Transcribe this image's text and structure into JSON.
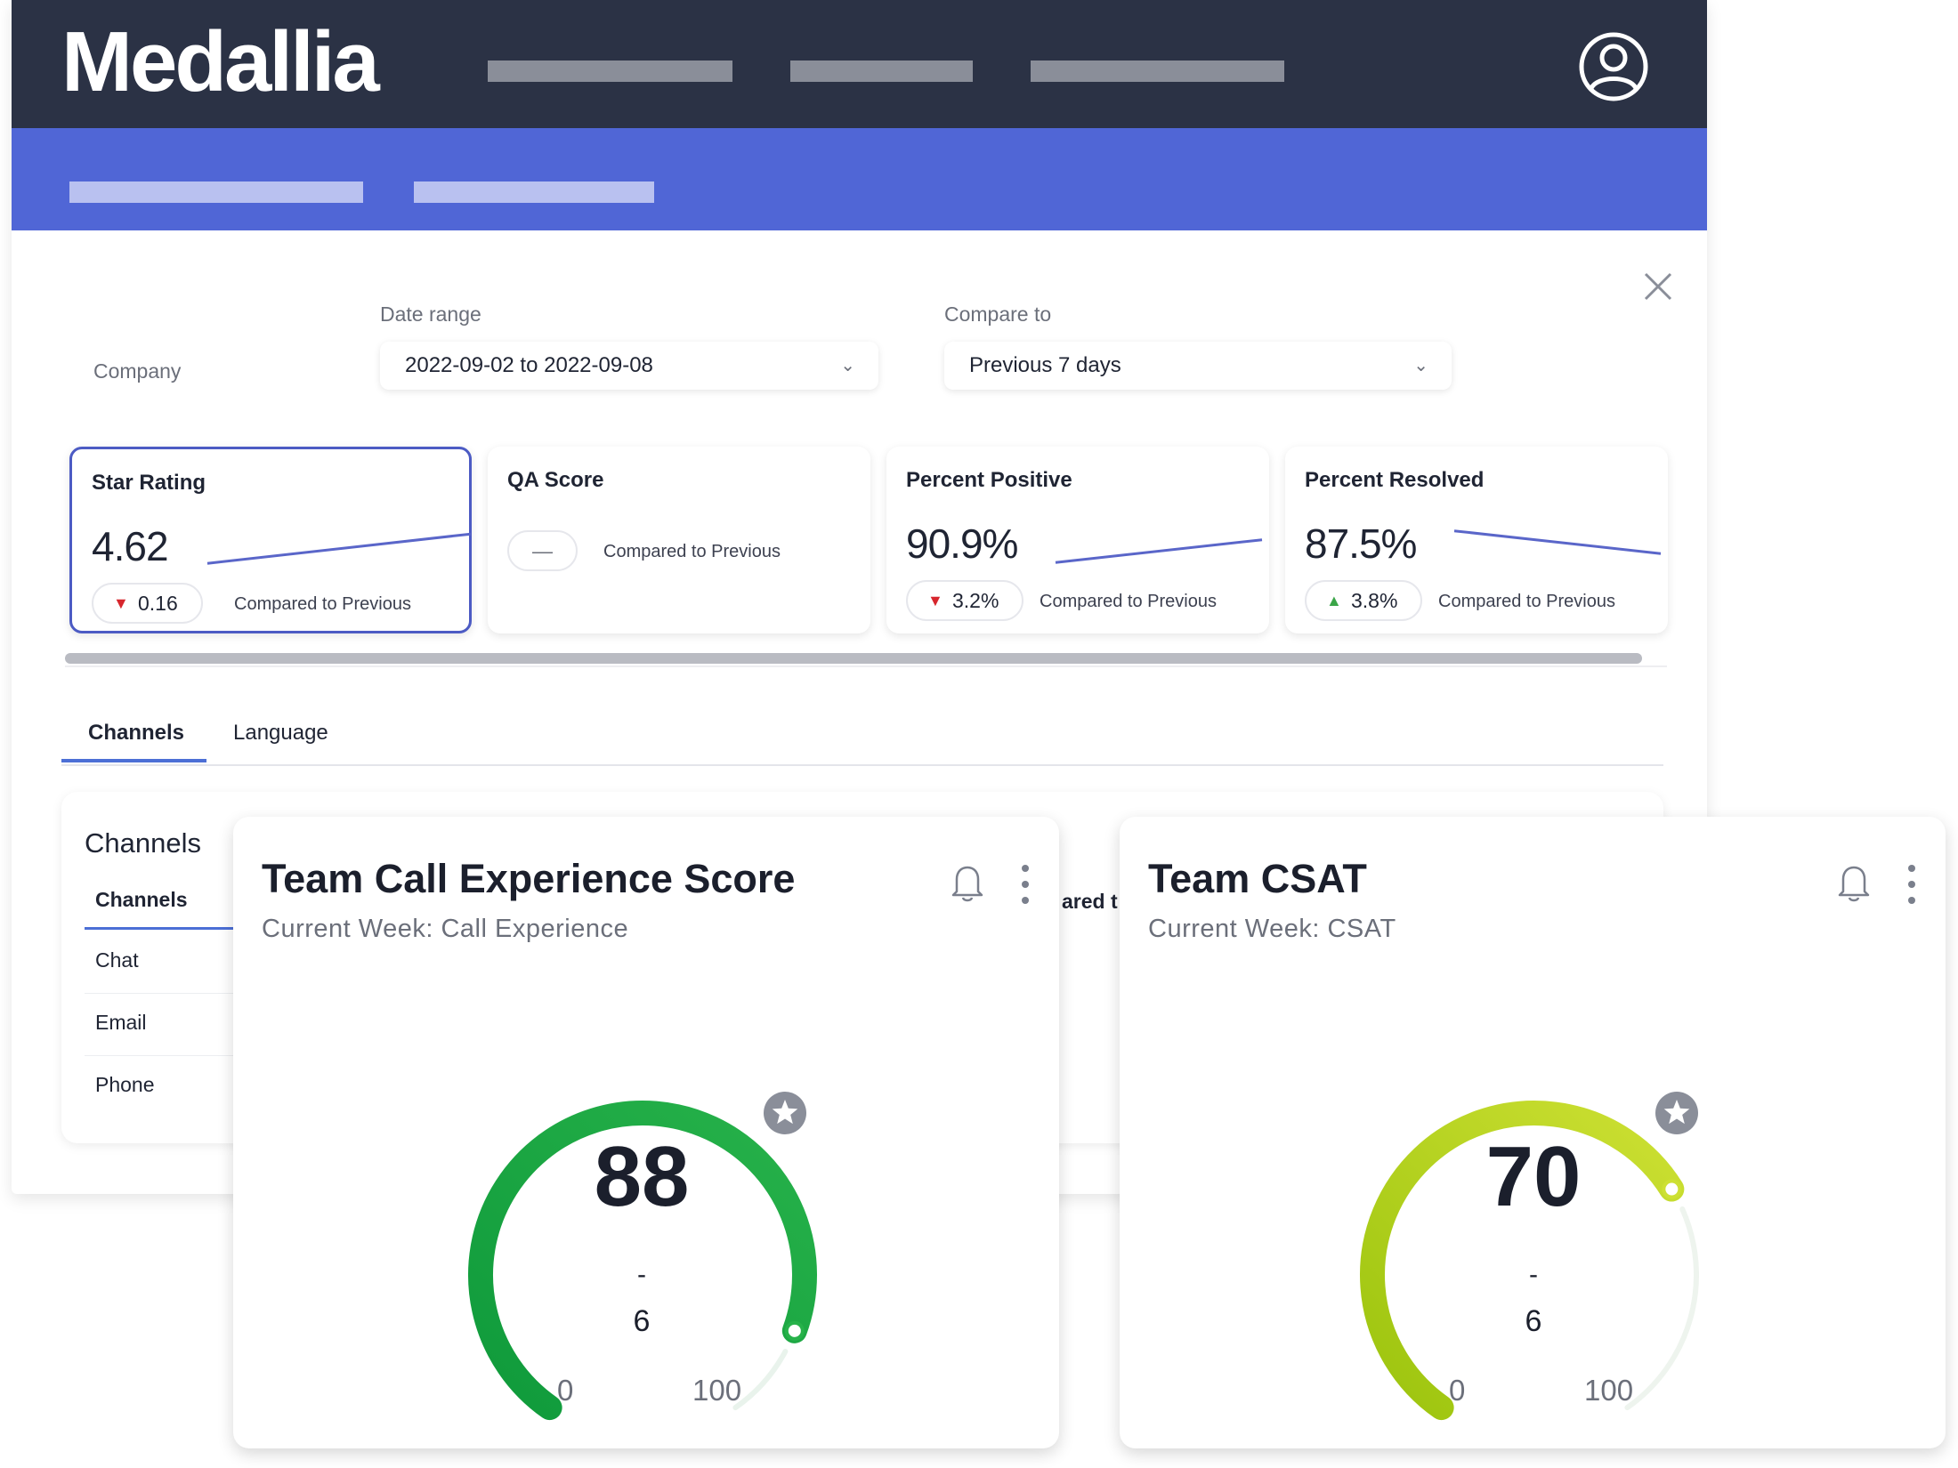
{
  "brand": {
    "logo": "Medallia"
  },
  "filters": {
    "company_label": "Company",
    "date_range_label": "Date range",
    "date_range_value": "2022-09-02 to 2022-09-08",
    "compare_label": "Compare to",
    "compare_value": "Previous 7 days"
  },
  "kpis": [
    {
      "title": "Star Rating",
      "value": "4.62",
      "change": "0.16",
      "direction": "down",
      "compare": "Compared to Previous",
      "trend": [
        0.2,
        0.95
      ]
    },
    {
      "title": "QA Score",
      "value": "",
      "change": "—",
      "direction": "none",
      "compare": "Compared to Previous",
      "trend": []
    },
    {
      "title": "Percent Positive",
      "value": "90.9%",
      "change": "3.2%",
      "direction": "down",
      "compare": "Compared to Previous",
      "trend": [
        0.2,
        0.95
      ]
    },
    {
      "title": "Percent Resolved",
      "value": "87.5%",
      "change": "3.8%",
      "direction": "up",
      "compare": "Compared to Previous",
      "trend": [
        0.95,
        0.2
      ]
    }
  ],
  "tabs": [
    "Channels",
    "Language"
  ],
  "channels_panel": {
    "title": "Channels",
    "column_header": "Channels",
    "rows": [
      "Chat",
      "Email",
      "Phone"
    ],
    "clipped_text": "ared t"
  },
  "gauges": [
    {
      "title": "Team Call Experience Score",
      "subtitle": "Current Week: Call Experience",
      "value": "88",
      "score": 88,
      "dash": "-",
      "change": "6",
      "min": "0",
      "max": "100",
      "color_start": "#0f9a3b",
      "color_end": "#27b24a",
      "track": "#e9f3ec"
    },
    {
      "title": "Team CSAT",
      "subtitle": "Current Week: CSAT",
      "value": "70",
      "score": 70,
      "dash": "-",
      "change": "6",
      "min": "0",
      "max": "100",
      "color_start": "#9cc40e",
      "color_end": "#cde033",
      "track": "#eef4ee"
    }
  ],
  "colors": {
    "topbar": "#2b3245",
    "subbar": "#5066d6",
    "accent": "#4c6fd6",
    "down": "#d7262d",
    "up": "#3aa548"
  },
  "icons": [
    "user-avatar-icon",
    "close-icon",
    "chevron-down-icon",
    "bell-icon",
    "kebab-menu-icon",
    "star-badge-icon"
  ]
}
